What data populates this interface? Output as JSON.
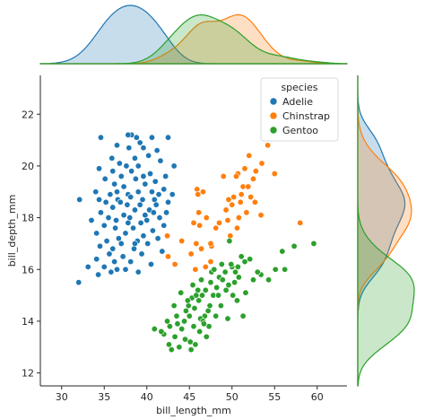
{
  "chart_data": {
    "type": "scatter",
    "xlabel": "bill_length_mm",
    "ylabel": "bill_depth_mm",
    "xlim": [
      27.5,
      63.5
    ],
    "ylim": [
      11.5,
      23.5
    ],
    "xticks": [
      30,
      35,
      40,
      45,
      50,
      55,
      60
    ],
    "yticks": [
      12,
      14,
      16,
      18,
      20,
      22
    ],
    "legend": {
      "title": "species",
      "placement": "upper-right"
    },
    "marginals": {
      "top": "kde of bill_length_mm by species",
      "right": "kde of bill_depth_mm by species"
    },
    "series": [
      {
        "name": "Adelie",
        "color": "#1f77b4",
        "points": [
          [
            34.6,
            21.1
          ],
          [
            38.2,
            21.2
          ],
          [
            37.8,
            21.2
          ],
          [
            38.8,
            21.1
          ],
          [
            40.6,
            21.1
          ],
          [
            42.5,
            21.1
          ],
          [
            39.2,
            20.9
          ],
          [
            36.5,
            20.8
          ],
          [
            37.9,
            20.7
          ],
          [
            39.6,
            20.7
          ],
          [
            41.2,
            20.6
          ],
          [
            40.2,
            20.4
          ],
          [
            35.9,
            20.3
          ],
          [
            38.6,
            20.3
          ],
          [
            41.6,
            20.2
          ],
          [
            36.8,
            20.1
          ],
          [
            37.6,
            20.0
          ],
          [
            39.0,
            20.0
          ],
          [
            43.2,
            20.0
          ],
          [
            34.4,
            19.9
          ],
          [
            38.2,
            19.8
          ],
          [
            36.0,
            19.8
          ],
          [
            40.4,
            19.7
          ],
          [
            42.2,
            19.6
          ],
          [
            35.1,
            19.5
          ],
          [
            38.7,
            19.5
          ],
          [
            41.0,
            19.4
          ],
          [
            36.2,
            19.3
          ],
          [
            39.8,
            19.3
          ],
          [
            37.3,
            19.2
          ],
          [
            42.0,
            19.1
          ],
          [
            34.0,
            19.0
          ],
          [
            36.5,
            19.0
          ],
          [
            39.0,
            19.0
          ],
          [
            40.6,
            19.0
          ],
          [
            37.8,
            18.9
          ],
          [
            35.7,
            18.9
          ],
          [
            41.4,
            18.9
          ],
          [
            43.0,
            18.9
          ],
          [
            38.1,
            18.8
          ],
          [
            32.1,
            18.7
          ],
          [
            34.4,
            18.7
          ],
          [
            36.6,
            18.7
          ],
          [
            39.5,
            18.7
          ],
          [
            40.9,
            18.7
          ],
          [
            42.5,
            18.6
          ],
          [
            35.2,
            18.6
          ],
          [
            37.7,
            18.5
          ],
          [
            39.2,
            18.5
          ],
          [
            41.1,
            18.5
          ],
          [
            36.0,
            18.4
          ],
          [
            38.6,
            18.3
          ],
          [
            40.3,
            18.3
          ],
          [
            34.6,
            18.2
          ],
          [
            42.3,
            18.2
          ],
          [
            37.3,
            18.1
          ],
          [
            39.8,
            18.1
          ],
          [
            35.5,
            18.0
          ],
          [
            38.0,
            18.0
          ],
          [
            41.5,
            18.0
          ],
          [
            36.4,
            17.9
          ],
          [
            40.0,
            17.9
          ],
          [
            33.5,
            17.9
          ],
          [
            37.8,
            17.8
          ],
          [
            39.3,
            17.8
          ],
          [
            42.0,
            17.7
          ],
          [
            35.0,
            17.7
          ],
          [
            38.4,
            17.6
          ],
          [
            36.3,
            17.6
          ],
          [
            40.7,
            17.5
          ],
          [
            34.1,
            17.4
          ],
          [
            37.5,
            17.4
          ],
          [
            39.6,
            17.3
          ],
          [
            36.7,
            17.2
          ],
          [
            41.3,
            17.2
          ],
          [
            35.3,
            17.1
          ],
          [
            38.9,
            17.1
          ],
          [
            37.0,
            17.0
          ],
          [
            40.1,
            17.0
          ],
          [
            34.5,
            16.9
          ],
          [
            36.0,
            16.8
          ],
          [
            38.5,
            16.8
          ],
          [
            41.8,
            16.7
          ],
          [
            35.6,
            16.6
          ],
          [
            39.4,
            16.6
          ],
          [
            37.2,
            16.5
          ],
          [
            34.1,
            16.4
          ],
          [
            36.2,
            16.3
          ],
          [
            38.1,
            16.3
          ],
          [
            40.5,
            16.2
          ],
          [
            35.0,
            16.1
          ],
          [
            37.5,
            16.0
          ],
          [
            33.1,
            16.1
          ],
          [
            36.5,
            16.0
          ],
          [
            39.0,
            15.9
          ],
          [
            35.8,
            15.9
          ],
          [
            34.3,
            15.8
          ],
          [
            32.0,
            15.5
          ],
          [
            38.6,
            17.0
          ],
          [
            36.9,
            18.6
          ],
          [
            39.6,
            19.6
          ],
          [
            40.8,
            18.2
          ],
          [
            37.0,
            19.6
          ]
        ]
      },
      {
        "name": "Chinstrap",
        "color": "#ff7f0e",
        "points": [
          [
            53.5,
            20.1
          ],
          [
            51.5,
            19.9
          ],
          [
            52.0,
            20.4
          ],
          [
            50.7,
            19.7
          ],
          [
            49.0,
            19.6
          ],
          [
            50.5,
            19.6
          ],
          [
            52.5,
            19.5
          ],
          [
            55.0,
            19.7
          ],
          [
            51.3,
            19.2
          ],
          [
            52.2,
            18.8
          ],
          [
            50.2,
            18.8
          ],
          [
            49.6,
            18.7
          ],
          [
            51.0,
            18.6
          ],
          [
            50.0,
            18.5
          ],
          [
            52.7,
            18.6
          ],
          [
            49.3,
            18.3
          ],
          [
            51.7,
            18.2
          ],
          [
            50.8,
            18.0
          ],
          [
            53.4,
            18.1
          ],
          [
            49.5,
            17.9
          ],
          [
            46.2,
            17.7
          ],
          [
            47.0,
            18.0
          ],
          [
            48.5,
            17.8
          ],
          [
            45.5,
            17.8
          ],
          [
            45.8,
            17.0
          ],
          [
            47.6,
            16.9
          ],
          [
            45.2,
            16.6
          ],
          [
            46.4,
            16.8
          ],
          [
            42.4,
            17.3
          ],
          [
            44.1,
            17.1
          ],
          [
            42.5,
            16.5
          ],
          [
            43.3,
            16.2
          ],
          [
            45.7,
            16.0
          ],
          [
            46.9,
            16.1
          ],
          [
            47.5,
            16.3
          ],
          [
            46.1,
            18.2
          ],
          [
            48.1,
            17.6
          ],
          [
            45.9,
            19.1
          ],
          [
            46.6,
            19.0
          ],
          [
            51.9,
            19.2
          ],
          [
            58.0,
            17.8
          ],
          [
            50.6,
            17.6
          ],
          [
            49.8,
            17.3
          ],
          [
            54.2,
            20.8
          ],
          [
            47.5,
            17.0
          ],
          [
            46.0,
            18.9
          ],
          [
            52.8,
            19.8
          ],
          [
            51.1,
            18.9
          ]
        ]
      },
      {
        "name": "Gentoo",
        "color": "#2ca02c",
        "points": [
          [
            55.9,
            16.7
          ],
          [
            59.6,
            17.0
          ],
          [
            57.3,
            16.9
          ],
          [
            56.2,
            16.0
          ],
          [
            55.1,
            16.0
          ],
          [
            53.4,
            15.8
          ],
          [
            52.5,
            15.6
          ],
          [
            51.5,
            16.3
          ],
          [
            51.1,
            16.5
          ],
          [
            50.4,
            15.9
          ],
          [
            50.0,
            16.1
          ],
          [
            49.2,
            15.9
          ],
          [
            48.5,
            15.7
          ],
          [
            50.8,
            15.7
          ],
          [
            49.6,
            15.4
          ],
          [
            47.5,
            15.5
          ],
          [
            48.2,
            15.3
          ],
          [
            46.9,
            15.2
          ],
          [
            47.8,
            15.0
          ],
          [
            46.5,
            15.0
          ],
          [
            45.3,
            14.9
          ],
          [
            46.1,
            14.8
          ],
          [
            44.9,
            14.6
          ],
          [
            45.6,
            14.5
          ],
          [
            48.7,
            14.6
          ],
          [
            50.6,
            14.8
          ],
          [
            47.2,
            14.4
          ],
          [
            46.8,
            14.2
          ],
          [
            45.0,
            14.2
          ],
          [
            44.4,
            14.0
          ],
          [
            43.5,
            14.2
          ],
          [
            42.7,
            13.8
          ],
          [
            44.1,
            13.7
          ],
          [
            45.5,
            13.8
          ],
          [
            47.3,
            13.8
          ],
          [
            46.2,
            13.6
          ],
          [
            43.3,
            13.4
          ],
          [
            44.5,
            13.3
          ],
          [
            45.1,
            13.2
          ],
          [
            42.0,
            13.5
          ],
          [
            41.7,
            13.6
          ],
          [
            43.8,
            13.0
          ],
          [
            42.9,
            12.9
          ],
          [
            40.9,
            13.7
          ],
          [
            42.6,
            13.1
          ],
          [
            49.3,
            15.2
          ],
          [
            50.1,
            15.0
          ],
          [
            48.8,
            16.2
          ],
          [
            50.7,
            16.1
          ],
          [
            46.4,
            15.6
          ],
          [
            47.6,
            15.9
          ],
          [
            44.0,
            15.1
          ],
          [
            45.4,
            15.4
          ],
          [
            43.2,
            14.6
          ],
          [
            49.5,
            14.1
          ],
          [
            48.1,
            14.2
          ],
          [
            47.0,
            13.4
          ],
          [
            51.3,
            14.2
          ],
          [
            45.7,
            13.1
          ],
          [
            46.3,
            14.1
          ],
          [
            52.1,
            16.4
          ],
          [
            54.3,
            15.6
          ],
          [
            44.8,
            14.8
          ],
          [
            50.3,
            15.5
          ],
          [
            48.4,
            15.0
          ],
          [
            46.0,
            15.2
          ],
          [
            47.4,
            14.6
          ],
          [
            49.9,
            16.2
          ],
          [
            45.8,
            15.0
          ],
          [
            51.6,
            15.1
          ],
          [
            42.4,
            14.0
          ],
          [
            43.6,
            13.9
          ],
          [
            44.6,
            14.4
          ],
          [
            48.9,
            15.6
          ],
          [
            47.9,
            16.0
          ],
          [
            46.6,
            14.0
          ],
          [
            45.2,
            12.9
          ],
          [
            53.0,
            15.9
          ],
          [
            49.7,
            17.1
          ],
          [
            46.7,
            13.9
          ]
        ]
      }
    ]
  }
}
